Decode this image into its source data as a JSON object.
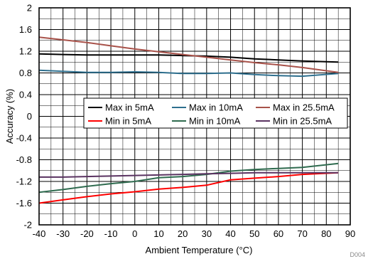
{
  "chart_data": {
    "type": "line",
    "xlabel": "Ambient Temperature (°C)",
    "ylabel": "Accuracy (%)",
    "xlim": [
      -40,
      90
    ],
    "ylim": [
      -2,
      2
    ],
    "x_ticks": [
      -40,
      -30,
      -20,
      -10,
      0,
      10,
      20,
      30,
      40,
      50,
      60,
      70,
      80,
      90
    ],
    "y_ticks": [
      -2,
      -1.6,
      -1.2,
      -0.8,
      -0.4,
      0,
      0.4,
      0.8,
      1.2,
      1.6,
      2
    ],
    "x_minor_step": 5,
    "y_minor_step": 0.2,
    "grid": true,
    "legend_position": "middle",
    "figure_code": "D004",
    "series": [
      {
        "name": "Max in 5mA",
        "color": "#000000",
        "x": [
          -40,
          -30,
          -20,
          -10,
          0,
          10,
          20,
          30,
          40,
          50,
          60,
          70,
          85
        ],
        "y": [
          1.15,
          1.14,
          1.13,
          1.13,
          1.13,
          1.13,
          1.12,
          1.11,
          1.09,
          1.06,
          1.04,
          1.02,
          1.0
        ]
      },
      {
        "name": "Max in 10mA",
        "color": "#2e6f8e",
        "x": [
          -40,
          -30,
          -20,
          -10,
          0,
          10,
          20,
          30,
          40,
          50,
          60,
          70,
          85
        ],
        "y": [
          0.85,
          0.83,
          0.81,
          0.81,
          0.82,
          0.81,
          0.79,
          0.79,
          0.8,
          0.77,
          0.75,
          0.74,
          0.79
        ]
      },
      {
        "name": "Max in 25.5mA",
        "color": "#a8524a",
        "x": [
          -40,
          -30,
          -20,
          -10,
          0,
          10,
          20,
          30,
          40,
          50,
          60,
          70,
          85
        ],
        "y": [
          1.46,
          1.41,
          1.36,
          1.3,
          1.24,
          1.19,
          1.14,
          1.09,
          1.04,
          0.99,
          0.95,
          0.9,
          0.81
        ]
      },
      {
        "name": "Min in 5mA",
        "color": "#ff0000",
        "x": [
          -40,
          -30,
          -20,
          -10,
          0,
          10,
          20,
          30,
          40,
          50,
          60,
          70,
          85
        ],
        "y": [
          -1.6,
          -1.54,
          -1.48,
          -1.43,
          -1.39,
          -1.34,
          -1.31,
          -1.27,
          -1.17,
          -1.14,
          -1.11,
          -1.07,
          -1.04
        ]
      },
      {
        "name": "Min in 10mA",
        "color": "#2f6b4f",
        "x": [
          -40,
          -30,
          -20,
          -10,
          0,
          10,
          20,
          30,
          40,
          50,
          60,
          70,
          85
        ],
        "y": [
          -1.4,
          -1.35,
          -1.29,
          -1.24,
          -1.2,
          -1.13,
          -1.11,
          -1.07,
          -1.01,
          -0.98,
          -0.96,
          -0.94,
          -0.87
        ]
      },
      {
        "name": "Min in 25.5mA",
        "color": "#5a3361",
        "x": [
          -40,
          -30,
          -20,
          -10,
          0,
          10,
          20,
          30,
          40,
          50,
          60,
          70,
          85
        ],
        "y": [
          -1.12,
          -1.12,
          -1.11,
          -1.1,
          -1.09,
          -1.08,
          -1.07,
          -1.06,
          -1.05,
          -1.04,
          -1.04,
          -1.04,
          -1.04
        ]
      }
    ]
  }
}
